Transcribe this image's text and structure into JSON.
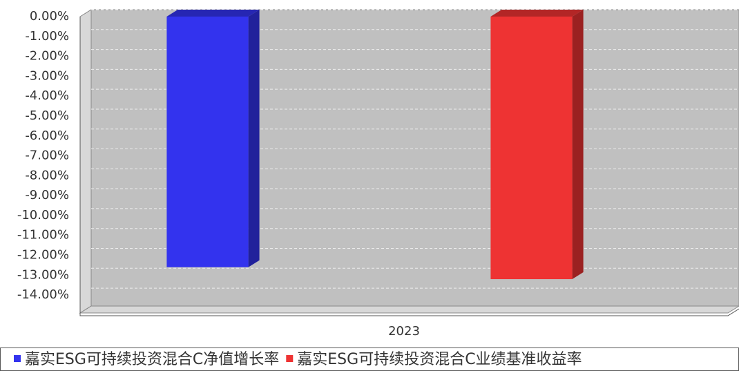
{
  "chart_data": {
    "type": "bar3d",
    "categories": [
      "2023"
    ],
    "series": [
      {
        "name": "嘉实ESG可持续投资混合C净值增长率",
        "color": "#3333ee",
        "values": [
          -12.6
        ]
      },
      {
        "name": "嘉实ESG可持续投资混合C业绩基准收益率",
        "color": "#ee3333",
        "values": [
          -13.2
        ]
      }
    ],
    "ylim": [
      -14.9,
      0
    ],
    "yticks": [
      {
        "value": 0,
        "label": "0.00%"
      },
      {
        "value": -1,
        "label": "-1.00%"
      },
      {
        "value": -2,
        "label": "-2.00%"
      },
      {
        "value": -3,
        "label": "-3.00%"
      },
      {
        "value": -4,
        "label": "-4.00%"
      },
      {
        "value": -5,
        "label": "-5.00%"
      },
      {
        "value": -6,
        "label": "-6.00%"
      },
      {
        "value": -7,
        "label": "-7.00%"
      },
      {
        "value": -8,
        "label": "-8.00%"
      },
      {
        "value": -9,
        "label": "-9.00%"
      },
      {
        "value": -10,
        "label": "-10.00%"
      },
      {
        "value": -11,
        "label": "-11.00%"
      },
      {
        "value": -12,
        "label": "-12.00%"
      },
      {
        "value": -13,
        "label": "-13.00%"
      },
      {
        "value": -14,
        "label": "-14.00%"
      }
    ],
    "grid": true
  }
}
